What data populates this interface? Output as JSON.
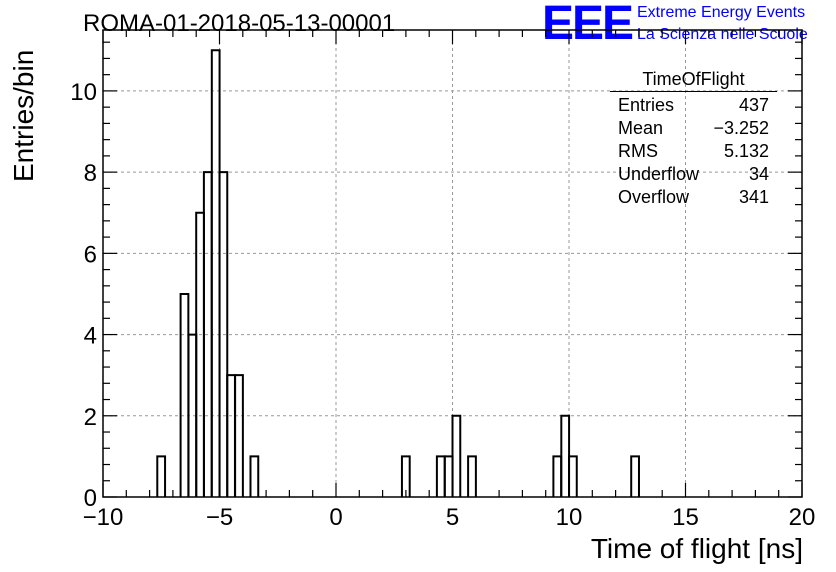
{
  "chart_data": {
    "type": "bar",
    "title": "ROMA-01-2018-05-13-00001",
    "xlabel": "Time of flight [ns]",
    "ylabel": "Entries/bin",
    "xlim": [
      -10,
      20
    ],
    "ylim": [
      0,
      11.5
    ],
    "grid": true,
    "bin_width": 0.3333,
    "x_ticks": [
      -10,
      -5,
      0,
      5,
      10,
      15,
      20
    ],
    "x_tick_labels": [
      "−10",
      "−5",
      "0",
      "5",
      "10",
      "15",
      "20"
    ],
    "y_ticks": [
      0,
      2,
      4,
      6,
      8,
      10
    ],
    "y_tick_labels": [
      "0",
      "2",
      "4",
      "6",
      "8",
      "10"
    ],
    "bins": [
      {
        "x_low": -7.67,
        "value": 1
      },
      {
        "x_low": -7.33,
        "value": 0
      },
      {
        "x_low": -7.0,
        "value": 0
      },
      {
        "x_low": -6.67,
        "value": 5
      },
      {
        "x_low": -6.33,
        "value": 4
      },
      {
        "x_low": -6.0,
        "value": 7
      },
      {
        "x_low": -5.67,
        "value": 8
      },
      {
        "x_low": -5.33,
        "value": 11
      },
      {
        "x_low": -5.0,
        "value": 8
      },
      {
        "x_low": -4.67,
        "value": 3
      },
      {
        "x_low": -4.33,
        "value": 3
      },
      {
        "x_low": -4.0,
        "value": 0
      },
      {
        "x_low": -3.67,
        "value": 1
      },
      {
        "x_low": 2.83,
        "value": 1
      },
      {
        "x_low": 4.33,
        "value": 1
      },
      {
        "x_low": 4.67,
        "value": 1
      },
      {
        "x_low": 5.0,
        "value": 2
      },
      {
        "x_low": 5.33,
        "value": 0
      },
      {
        "x_low": 5.67,
        "value": 1
      },
      {
        "x_low": 9.33,
        "value": 1
      },
      {
        "x_low": 9.67,
        "value": 2
      },
      {
        "x_low": 10.0,
        "value": 1
      },
      {
        "x_low": 12.67,
        "value": 1
      }
    ]
  },
  "stats_box": {
    "title": "TimeOfFlight",
    "rows": [
      {
        "label": "Entries",
        "value": "437"
      },
      {
        "label": "Mean",
        "value": "−3.252"
      },
      {
        "label": "RMS",
        "value": "5.132"
      },
      {
        "label": "Underflow",
        "value": "34"
      },
      {
        "label": "Overflow",
        "value": "341"
      }
    ]
  },
  "logo": {
    "mark": "EEE",
    "line1": "Extreme Energy Events",
    "line2": "La Scienza nelle Scuole"
  }
}
